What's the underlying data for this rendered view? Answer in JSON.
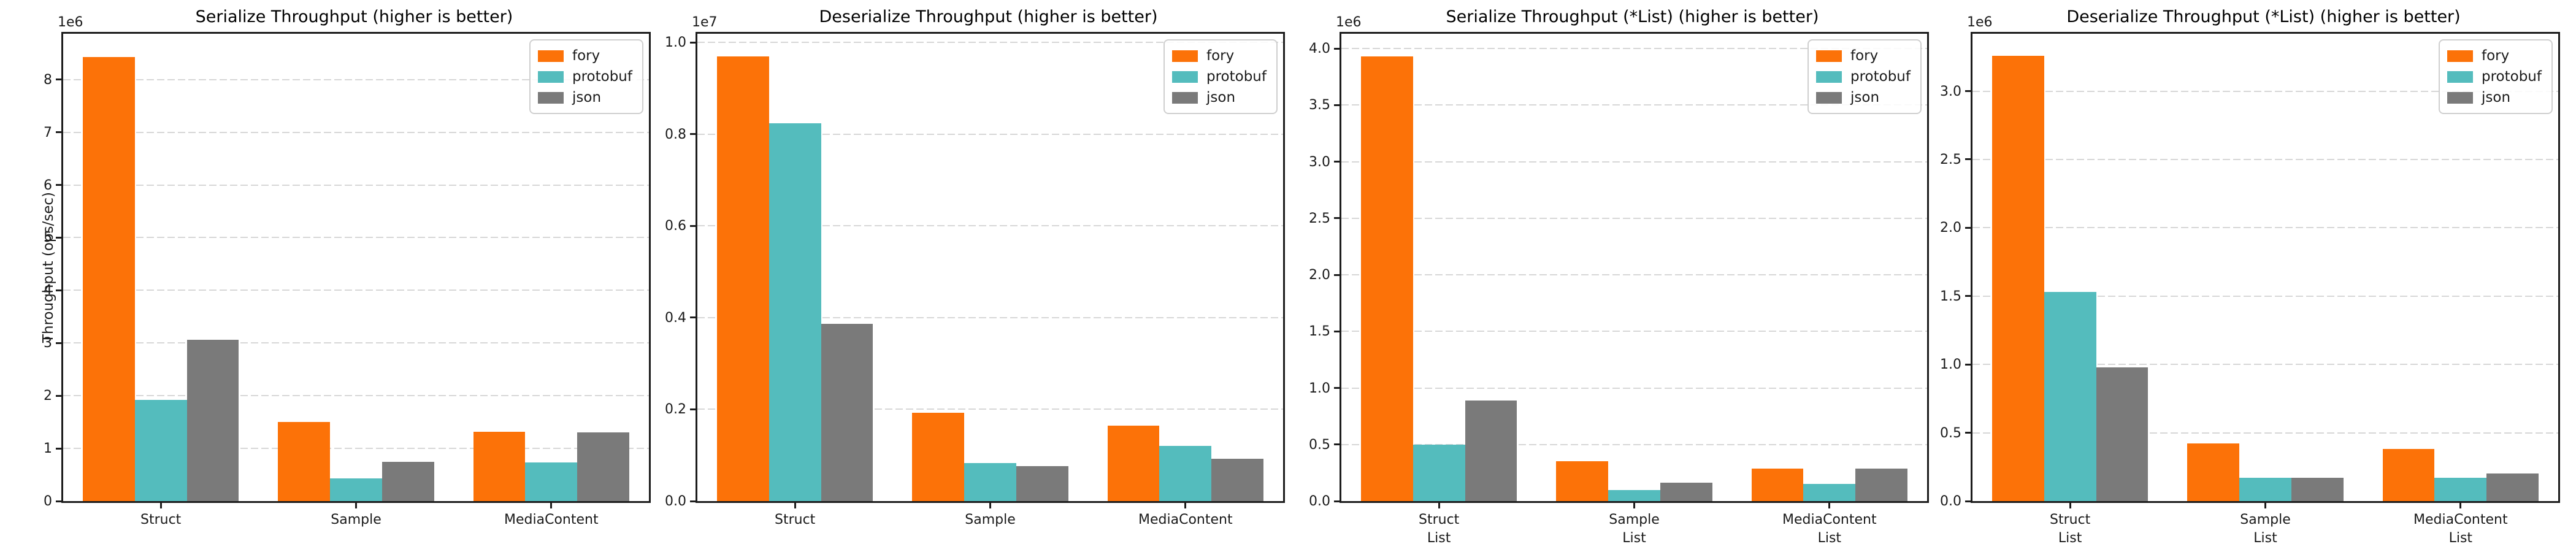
{
  "figure": {
    "background": "#ffffff",
    "series_names": [
      "fory",
      "protobuf",
      "json"
    ],
    "series_colors": {
      "fory": "#fc7208",
      "protobuf": "#54bcbd",
      "json": "#7a7a7a"
    },
    "grid_color": "#d7d7d7",
    "spine_color": "#1c1c1c",
    "text_color": "#1a1a1a"
  },
  "chart_data": [
    {
      "type": "bar",
      "title": "Serialize Throughput (higher is better)",
      "ylabel": "Throughput (ops/sec)",
      "offset_label": "1e6",
      "legend_position": "upper right",
      "grid": "horizontal dashed",
      "categories": [
        [
          "Struct"
        ],
        [
          "Sample"
        ],
        [
          "MediaContent"
        ]
      ],
      "series": [
        {
          "name": "fory",
          "values": [
            8430000,
            1500000,
            1310000
          ]
        },
        {
          "name": "protobuf",
          "values": [
            1920000,
            430000,
            730000
          ]
        },
        {
          "name": "json",
          "values": [
            3060000,
            740000,
            1300000
          ]
        }
      ],
      "ylim": [
        0,
        8870000
      ],
      "yticks": [
        {
          "label": "0",
          "value": 0
        },
        {
          "label": "1",
          "value": 1000000
        },
        {
          "label": "2",
          "value": 2000000
        },
        {
          "label": "3",
          "value": 3000000
        },
        {
          "label": "4",
          "value": 4000000
        },
        {
          "label": "5",
          "value": 5000000
        },
        {
          "label": "6",
          "value": 6000000
        },
        {
          "label": "7",
          "value": 7000000
        },
        {
          "label": "8",
          "value": 8000000
        }
      ]
    },
    {
      "type": "bar",
      "title": "Deserialize Throughput (higher is better)",
      "ylabel": "",
      "offset_label": "1e7",
      "legend_position": "upper right",
      "grid": "horizontal dashed",
      "categories": [
        [
          "Struct"
        ],
        [
          "Sample"
        ],
        [
          "MediaContent"
        ]
      ],
      "series": [
        {
          "name": "fory",
          "values": [
            9700000,
            1920000,
            1640000
          ]
        },
        {
          "name": "protobuf",
          "values": [
            8240000,
            830000,
            1210000
          ]
        },
        {
          "name": "json",
          "values": [
            3870000,
            760000,
            920000
          ]
        }
      ],
      "ylim": [
        0,
        10190000
      ],
      "yticks": [
        {
          "label": "0.0",
          "value": 0
        },
        {
          "label": "0.2",
          "value": 2000000
        },
        {
          "label": "0.4",
          "value": 4000000
        },
        {
          "label": "0.6",
          "value": 6000000
        },
        {
          "label": "0.8",
          "value": 8000000
        },
        {
          "label": "1.0",
          "value": 10000000
        }
      ]
    },
    {
      "type": "bar",
      "title": "Serialize Throughput (*List) (higher is better)",
      "ylabel": "",
      "offset_label": "1e6",
      "legend_position": "upper right",
      "grid": "horizontal dashed",
      "categories": [
        [
          "Struct",
          "List"
        ],
        [
          "Sample",
          "List"
        ],
        [
          "MediaContent",
          "List"
        ]
      ],
      "series": [
        {
          "name": "fory",
          "values": [
            3930000,
            350000,
            290000
          ]
        },
        {
          "name": "protobuf",
          "values": [
            500000,
            100000,
            150000
          ]
        },
        {
          "name": "json",
          "values": [
            890000,
            160000,
            290000
          ]
        }
      ],
      "ylim": [
        0,
        4130000
      ],
      "yticks": [
        {
          "label": "0.0",
          "value": 0
        },
        {
          "label": "0.5",
          "value": 500000
        },
        {
          "label": "1.0",
          "value": 1000000
        },
        {
          "label": "1.5",
          "value": 1500000
        },
        {
          "label": "2.0",
          "value": 2000000
        },
        {
          "label": "2.5",
          "value": 2500000
        },
        {
          "label": "3.0",
          "value": 3000000
        },
        {
          "label": "3.5",
          "value": 3500000
        },
        {
          "label": "4.0",
          "value": 4000000
        }
      ]
    },
    {
      "type": "bar",
      "title": "Deserialize Throughput (*List) (higher is better)",
      "ylabel": "",
      "offset_label": "1e6",
      "legend_position": "upper right",
      "grid": "horizontal dashed",
      "categories": [
        [
          "Struct",
          "List"
        ],
        [
          "Sample",
          "List"
        ],
        [
          "MediaContent",
          "List"
        ]
      ],
      "series": [
        {
          "name": "fory",
          "values": [
            3260000,
            420000,
            380000
          ]
        },
        {
          "name": "protobuf",
          "values": [
            1530000,
            170000,
            170000
          ]
        },
        {
          "name": "json",
          "values": [
            980000,
            170000,
            200000
          ]
        }
      ],
      "ylim": [
        0,
        3420000
      ],
      "yticks": [
        {
          "label": "0.0",
          "value": 0
        },
        {
          "label": "0.5",
          "value": 500000
        },
        {
          "label": "1.0",
          "value": 1000000
        },
        {
          "label": "1.5",
          "value": 1500000
        },
        {
          "label": "2.0",
          "value": 2000000
        },
        {
          "label": "2.5",
          "value": 2500000
        },
        {
          "label": "3.0",
          "value": 3000000
        }
      ]
    }
  ]
}
